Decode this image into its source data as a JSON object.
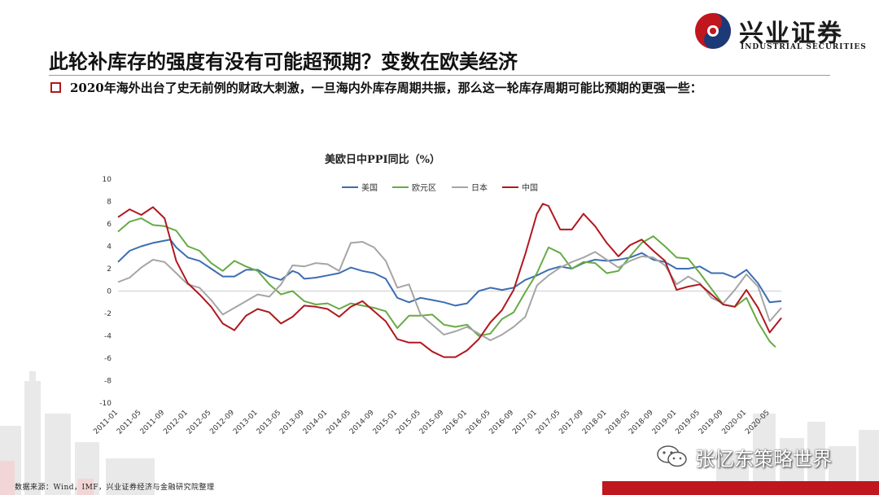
{
  "header": {
    "title": "此轮补库存的强度有没有可能超预期？变数在欧美经济",
    "bullet_text": "2020年海外出台了史无前例的财政大刺激，一旦海内外库存周期共振，那么这一轮库存周期可能比预期的更强一些："
  },
  "logo": {
    "cn": "兴业证券",
    "en": "INDUSTRIAL SECURITIES",
    "icon": "swirl-logo-icon",
    "red": "#c0161d",
    "navy": "#1c3a78"
  },
  "footer": {
    "source": "数据来源：Wind，IMF，兴业证券经济与金融研究院整理"
  },
  "watermark": {
    "text": "张忆东策略世界",
    "icon": "wechat-icon"
  },
  "chart_data": {
    "type": "line",
    "title": "美欧日中PPI同比（%）",
    "xlabel": "",
    "ylabel": "",
    "ylim": [
      -10,
      10
    ],
    "yticks": [
      10,
      8,
      6,
      4,
      2,
      0,
      -2,
      -4,
      -6,
      -8,
      -10
    ],
    "x_start": "2011-01",
    "x_end": "2020-07",
    "x_ticks": [
      "2011-01",
      "2011-05",
      "2011-09",
      "2012-01",
      "2012-05",
      "2012-09",
      "2013-01",
      "2013-05",
      "2013-09",
      "2014-01",
      "2014-05",
      "2014-09",
      "2015-01",
      "2015-05",
      "2015-09",
      "2016-01",
      "2016-05",
      "2016-09",
      "2017-01",
      "2017-05",
      "2017-09",
      "2018-01",
      "2018-05",
      "2018-09",
      "2019-01",
      "2019-05",
      "2019-09",
      "2020-01",
      "2020-05"
    ],
    "legend_position": "top",
    "grid": false,
    "series": [
      {
        "name": "美国",
        "color": "#3c6db2",
        "points": [
          [
            "2011-01",
            2.6
          ],
          [
            "2011-03",
            3.6
          ],
          [
            "2011-05",
            4.0
          ],
          [
            "2011-07",
            4.3
          ],
          [
            "2011-09",
            4.5
          ],
          [
            "2011-10",
            4.6
          ],
          [
            "2011-11",
            3.9
          ],
          [
            "2012-01",
            3.0
          ],
          [
            "2012-03",
            2.7
          ],
          [
            "2012-05",
            2.0
          ],
          [
            "2012-07",
            1.3
          ],
          [
            "2012-09",
            1.3
          ],
          [
            "2012-11",
            1.9
          ],
          [
            "2013-01",
            1.9
          ],
          [
            "2013-03",
            1.3
          ],
          [
            "2013-05",
            1.0
          ],
          [
            "2013-07",
            1.8
          ],
          [
            "2013-08",
            1.6
          ],
          [
            "2013-09",
            1.1
          ],
          [
            "2013-11",
            1.2
          ],
          [
            "2014-01",
            1.4
          ],
          [
            "2014-03",
            1.6
          ],
          [
            "2014-05",
            2.1
          ],
          [
            "2014-07",
            1.8
          ],
          [
            "2014-09",
            1.6
          ],
          [
            "2014-11",
            1.1
          ],
          [
            "2015-01",
            -0.6
          ],
          [
            "2015-03",
            -1.0
          ],
          [
            "2015-05",
            -0.6
          ],
          [
            "2015-07",
            -0.8
          ],
          [
            "2015-09",
            -1.0
          ],
          [
            "2015-11",
            -1.3
          ],
          [
            "2016-01",
            -1.1
          ],
          [
            "2016-03",
            0.0
          ],
          [
            "2016-05",
            0.3
          ],
          [
            "2016-07",
            0.1
          ],
          [
            "2016-09",
            0.3
          ],
          [
            "2016-11",
            1.0
          ],
          [
            "2017-01",
            1.4
          ],
          [
            "2017-03",
            1.9
          ],
          [
            "2017-05",
            2.2
          ],
          [
            "2017-07",
            2.0
          ],
          [
            "2017-09",
            2.5
          ],
          [
            "2017-11",
            2.8
          ],
          [
            "2018-01",
            2.7
          ],
          [
            "2018-03",
            2.8
          ],
          [
            "2018-05",
            3.0
          ],
          [
            "2018-07",
            3.4
          ],
          [
            "2018-09",
            2.8
          ],
          [
            "2018-11",
            2.6
          ],
          [
            "2019-01",
            2.0
          ],
          [
            "2019-03",
            2.0
          ],
          [
            "2019-05",
            2.2
          ],
          [
            "2019-07",
            1.6
          ],
          [
            "2019-09",
            1.6
          ],
          [
            "2019-11",
            1.2
          ],
          [
            "2020-01",
            1.9
          ],
          [
            "2020-03",
            0.7
          ],
          [
            "2020-05",
            -1.0
          ],
          [
            "2020-07",
            -0.9
          ]
        ]
      },
      {
        "name": "欧元区",
        "color": "#67aa45",
        "points": [
          [
            "2011-01",
            5.3
          ],
          [
            "2011-03",
            6.2
          ],
          [
            "2011-05",
            6.5
          ],
          [
            "2011-07",
            5.9
          ],
          [
            "2011-09",
            5.8
          ],
          [
            "2011-11",
            5.4
          ],
          [
            "2012-01",
            4.0
          ],
          [
            "2012-03",
            3.6
          ],
          [
            "2012-05",
            2.5
          ],
          [
            "2012-07",
            1.8
          ],
          [
            "2012-09",
            2.7
          ],
          [
            "2012-11",
            2.2
          ],
          [
            "2013-01",
            1.8
          ],
          [
            "2013-03",
            0.6
          ],
          [
            "2013-05",
            -0.3
          ],
          [
            "2013-07",
            0.0
          ],
          [
            "2013-09",
            -0.9
          ],
          [
            "2013-11",
            -1.2
          ],
          [
            "2014-01",
            -1.1
          ],
          [
            "2014-03",
            -1.6
          ],
          [
            "2014-05",
            -1.1
          ],
          [
            "2014-07",
            -1.3
          ],
          [
            "2014-09",
            -1.5
          ],
          [
            "2014-11",
            -1.8
          ],
          [
            "2015-01",
            -3.3
          ],
          [
            "2015-03",
            -2.2
          ],
          [
            "2015-05",
            -2.2
          ],
          [
            "2015-07",
            -2.1
          ],
          [
            "2015-09",
            -3.0
          ],
          [
            "2015-11",
            -3.2
          ],
          [
            "2016-01",
            -3.0
          ],
          [
            "2016-03",
            -4.0
          ],
          [
            "2016-05",
            -3.8
          ],
          [
            "2016-07",
            -2.5
          ],
          [
            "2016-09",
            -1.9
          ],
          [
            "2016-11",
            -0.1
          ],
          [
            "2017-01",
            1.6
          ],
          [
            "2017-03",
            3.9
          ],
          [
            "2017-05",
            3.4
          ],
          [
            "2017-07",
            2.0
          ],
          [
            "2017-09",
            2.6
          ],
          [
            "2017-11",
            2.5
          ],
          [
            "2018-01",
            1.6
          ],
          [
            "2018-03",
            1.8
          ],
          [
            "2018-05",
            3.1
          ],
          [
            "2018-07",
            4.3
          ],
          [
            "2018-09",
            4.9
          ],
          [
            "2018-11",
            4.0
          ],
          [
            "2019-01",
            3.0
          ],
          [
            "2019-03",
            2.9
          ],
          [
            "2019-05",
            1.6
          ],
          [
            "2019-07",
            0.2
          ],
          [
            "2019-09",
            -1.2
          ],
          [
            "2019-11",
            -1.4
          ],
          [
            "2020-01",
            -0.6
          ],
          [
            "2020-03",
            -2.8
          ],
          [
            "2020-05",
            -4.5
          ],
          [
            "2020-06",
            -5.0
          ]
        ]
      },
      {
        "name": "日本",
        "color": "#a5a5a5",
        "points": [
          [
            "2011-01",
            0.8
          ],
          [
            "2011-03",
            1.2
          ],
          [
            "2011-05",
            2.1
          ],
          [
            "2011-07",
            2.8
          ],
          [
            "2011-09",
            2.6
          ],
          [
            "2011-11",
            1.6
          ],
          [
            "2012-01",
            0.6
          ],
          [
            "2012-03",
            0.3
          ],
          [
            "2012-05",
            -0.8
          ],
          [
            "2012-07",
            -2.1
          ],
          [
            "2012-09",
            -1.5
          ],
          [
            "2012-11",
            -0.9
          ],
          [
            "2013-01",
            -0.3
          ],
          [
            "2013-03",
            -0.5
          ],
          [
            "2013-05",
            0.6
          ],
          [
            "2013-07",
            2.3
          ],
          [
            "2013-09",
            2.2
          ],
          [
            "2013-11",
            2.5
          ],
          [
            "2014-01",
            2.4
          ],
          [
            "2014-03",
            1.8
          ],
          [
            "2014-05",
            4.3
          ],
          [
            "2014-07",
            4.4
          ],
          [
            "2014-09",
            3.9
          ],
          [
            "2014-11",
            2.7
          ],
          [
            "2015-01",
            0.3
          ],
          [
            "2015-03",
            0.6
          ],
          [
            "2015-05",
            -2.1
          ],
          [
            "2015-07",
            -3.0
          ],
          [
            "2015-09",
            -3.9
          ],
          [
            "2015-11",
            -3.6
          ],
          [
            "2016-01",
            -3.2
          ],
          [
            "2016-03",
            -3.8
          ],
          [
            "2016-05",
            -4.4
          ],
          [
            "2016-07",
            -3.9
          ],
          [
            "2016-09",
            -3.2
          ],
          [
            "2016-11",
            -2.3
          ],
          [
            "2017-01",
            0.5
          ],
          [
            "2017-03",
            1.4
          ],
          [
            "2017-05",
            2.1
          ],
          [
            "2017-07",
            2.6
          ],
          [
            "2017-09",
            3.0
          ],
          [
            "2017-11",
            3.5
          ],
          [
            "2018-01",
            2.8
          ],
          [
            "2018-03",
            2.1
          ],
          [
            "2018-05",
            2.7
          ],
          [
            "2018-07",
            3.1
          ],
          [
            "2018-09",
            3.0
          ],
          [
            "2018-11",
            2.3
          ],
          [
            "2019-01",
            0.6
          ],
          [
            "2019-03",
            1.3
          ],
          [
            "2019-05",
            0.7
          ],
          [
            "2019-07",
            -0.6
          ],
          [
            "2019-09",
            -1.1
          ],
          [
            "2019-11",
            0.1
          ],
          [
            "2020-01",
            1.5
          ],
          [
            "2020-03",
            0.4
          ],
          [
            "2020-05",
            -2.7
          ],
          [
            "2020-07",
            -1.5
          ]
        ]
      },
      {
        "name": "中国",
        "color": "#b0181e",
        "points": [
          [
            "2011-01",
            6.6
          ],
          [
            "2011-03",
            7.3
          ],
          [
            "2011-05",
            6.8
          ],
          [
            "2011-07",
            7.5
          ],
          [
            "2011-09",
            6.5
          ],
          [
            "2011-11",
            2.7
          ],
          [
            "2012-01",
            0.7
          ],
          [
            "2012-03",
            -0.3
          ],
          [
            "2012-05",
            -1.4
          ],
          [
            "2012-07",
            -2.9
          ],
          [
            "2012-09",
            -3.5
          ],
          [
            "2012-11",
            -2.2
          ],
          [
            "2013-01",
            -1.6
          ],
          [
            "2013-03",
            -1.9
          ],
          [
            "2013-05",
            -2.9
          ],
          [
            "2013-07",
            -2.3
          ],
          [
            "2013-09",
            -1.3
          ],
          [
            "2013-11",
            -1.4
          ],
          [
            "2014-01",
            -1.6
          ],
          [
            "2014-03",
            -2.3
          ],
          [
            "2014-05",
            -1.4
          ],
          [
            "2014-07",
            -0.9
          ],
          [
            "2014-09",
            -1.8
          ],
          [
            "2014-11",
            -2.7
          ],
          [
            "2015-01",
            -4.3
          ],
          [
            "2015-03",
            -4.6
          ],
          [
            "2015-05",
            -4.6
          ],
          [
            "2015-07",
            -5.4
          ],
          [
            "2015-09",
            -5.9
          ],
          [
            "2015-11",
            -5.9
          ],
          [
            "2016-01",
            -5.3
          ],
          [
            "2016-03",
            -4.3
          ],
          [
            "2016-05",
            -2.8
          ],
          [
            "2016-07",
            -1.7
          ],
          [
            "2016-09",
            0.1
          ],
          [
            "2016-11",
            3.3
          ],
          [
            "2017-01",
            6.9
          ],
          [
            "2017-02",
            7.8
          ],
          [
            "2017-03",
            7.6
          ],
          [
            "2017-05",
            5.5
          ],
          [
            "2017-07",
            5.5
          ],
          [
            "2017-09",
            6.9
          ],
          [
            "2017-11",
            5.8
          ],
          [
            "2018-01",
            4.3
          ],
          [
            "2018-03",
            3.1
          ],
          [
            "2018-05",
            4.1
          ],
          [
            "2018-07",
            4.6
          ],
          [
            "2018-09",
            3.6
          ],
          [
            "2018-11",
            2.7
          ],
          [
            "2019-01",
            0.1
          ],
          [
            "2019-03",
            0.4
          ],
          [
            "2019-05",
            0.6
          ],
          [
            "2019-07",
            -0.3
          ],
          [
            "2019-09",
            -1.2
          ],
          [
            "2019-11",
            -1.4
          ],
          [
            "2020-01",
            0.1
          ],
          [
            "2020-03",
            -1.5
          ],
          [
            "2020-05",
            -3.7
          ],
          [
            "2020-07",
            -2.4
          ]
        ]
      }
    ]
  }
}
